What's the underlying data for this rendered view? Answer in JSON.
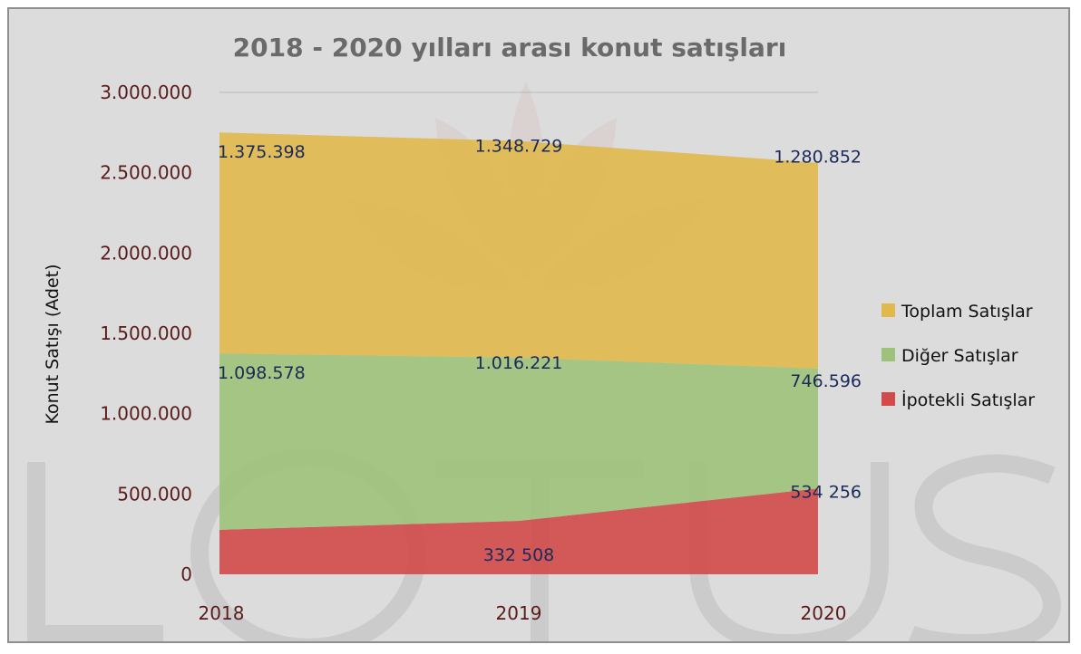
{
  "chart_data": {
    "type": "area",
    "stacked": true,
    "title": "2018 - 2020 yılları arası konut satışları",
    "ylabel": "Konut  Satışı (Adet)",
    "xlabel": "",
    "categories": [
      "2018",
      "2019",
      "2020"
    ],
    "ylim": [
      0,
      3000000
    ],
    "yticks": [
      0,
      500000,
      1000000,
      1500000,
      2000000,
      2500000,
      3000000
    ],
    "ytick_labels": [
      "0",
      "500.000",
      "1.000.000",
      "1.500.000",
      "2.000.000",
      "2.500.000",
      "3.000.000"
    ],
    "legend_position": "right",
    "grid": false,
    "series": [
      {
        "name": "İpotekli Satışlar",
        "color": "#d24a4a",
        "values": [
          276820,
          332508,
          534256
        ],
        "labels": [
          "",
          "332 508",
          "534 256"
        ]
      },
      {
        "name": "Diğer Satışlar",
        "color": "#9fc27a",
        "values": [
          1098578,
          1016221,
          746596
        ],
        "labels": [
          "1.098.578",
          "1.016.221",
          "746.596"
        ]
      },
      {
        "name": "Toplam Satışlar",
        "color": "#e0b84c",
        "values": [
          1375398,
          1348729,
          1280852
        ],
        "labels": [
          "1.375.398",
          "1.348.729",
          "1.280.852"
        ]
      }
    ],
    "legend_order": [
      2,
      1,
      0
    ]
  },
  "watermark": {
    "text": "LOTUS"
  }
}
